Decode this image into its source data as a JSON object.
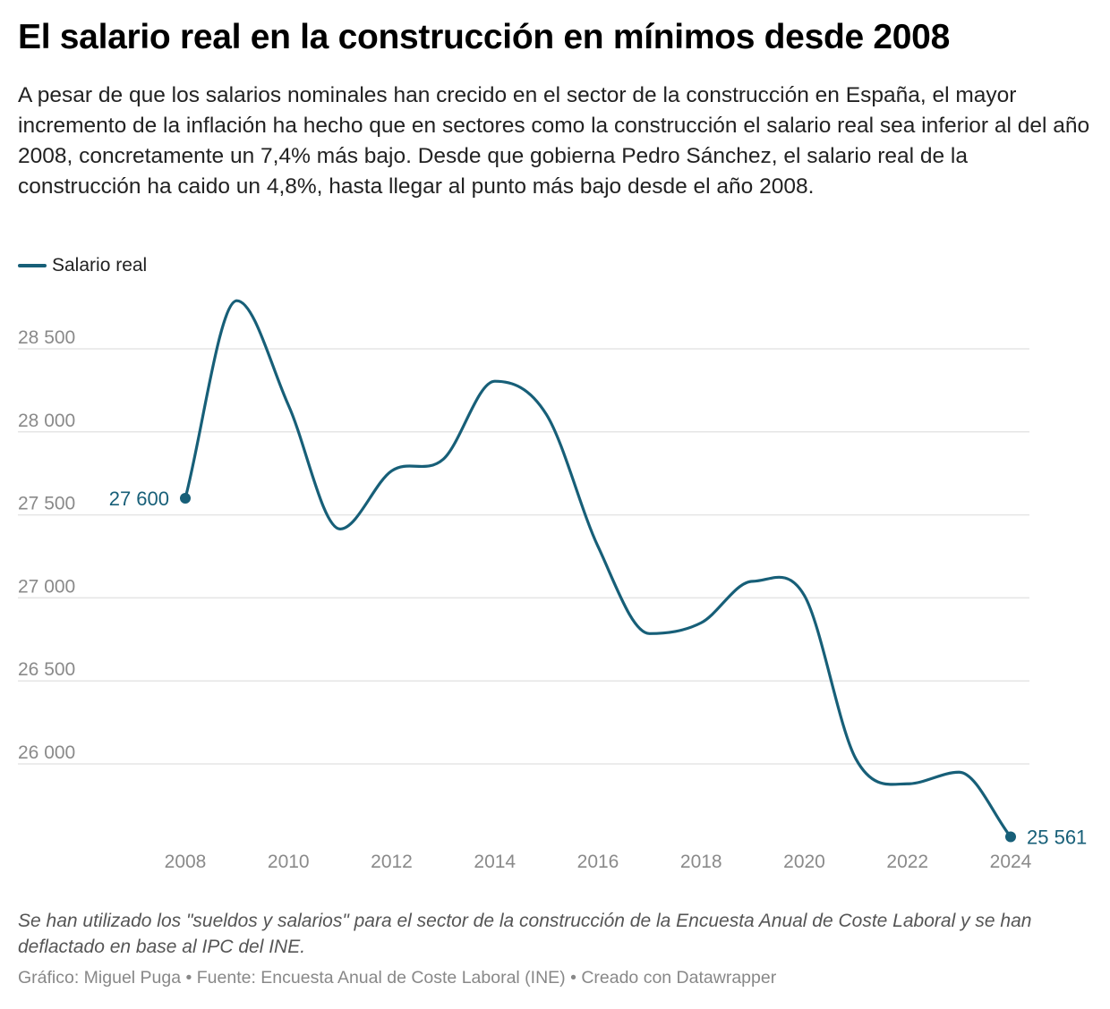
{
  "title": "El salario real en la construcción en mínimos desde 2008",
  "subtitle": "A pesar de que los salarios nominales han crecido en el sector de la construcción en España, el mayor incremento de la inflación ha hecho que en sectores como la construcción el salario real sea inferior al del año 2008, concretamente un 7,4% más bajo. Desde que gobierna Pedro Sánchez, el salario real de la construcción ha caido un 4,8%, hasta llegar al punto más bajo desde el año 2008.",
  "notes": "Se han utilizado los \"sueldos y salarios\" para el sector de la construcción de la Encuesta Anual de Coste Laboral y se han deflactado en base al IPC del INE.",
  "footer": "Gráfico: Miguel Puga • Fuente: Encuesta Anual de Coste Laboral (INE) • Creado con Datawrapper",
  "colors": {
    "series": "#175f78",
    "grid": "#e5e5e5",
    "axis_text": "#8a8a8a"
  },
  "chart_data": {
    "type": "line",
    "title": "El salario real en la construcción en mínimos desde 2008",
    "xlabel": "",
    "ylabel": "",
    "x": [
      2008,
      2009,
      2010,
      2011,
      2012,
      2013,
      2014,
      2015,
      2016,
      2017,
      2018,
      2019,
      2020,
      2021,
      2022,
      2023,
      2024
    ],
    "series": [
      {
        "name": "Salario real",
        "values": [
          27600,
          28790,
          28160,
          27415,
          27765,
          27835,
          28305,
          28105,
          27310,
          26785,
          26850,
          27100,
          27015,
          26030,
          25880,
          25950,
          25561
        ]
      }
    ],
    "xlim": [
      2008,
      2024
    ],
    "ylim": [
      25561,
      28800
    ],
    "x_ticks": [
      "2008",
      "2010",
      "2012",
      "2014",
      "2016",
      "2018",
      "2020",
      "2022",
      "2024"
    ],
    "y_ticks": [
      "26 000",
      "26 500",
      "27 000",
      "27 500",
      "28 000",
      "28 500"
    ],
    "annotations": [
      {
        "x": 2008,
        "label": "27 600"
      },
      {
        "x": 2024,
        "label": "25 561"
      }
    ],
    "grid": true,
    "legend": "top-left",
    "curve": "smooth"
  }
}
